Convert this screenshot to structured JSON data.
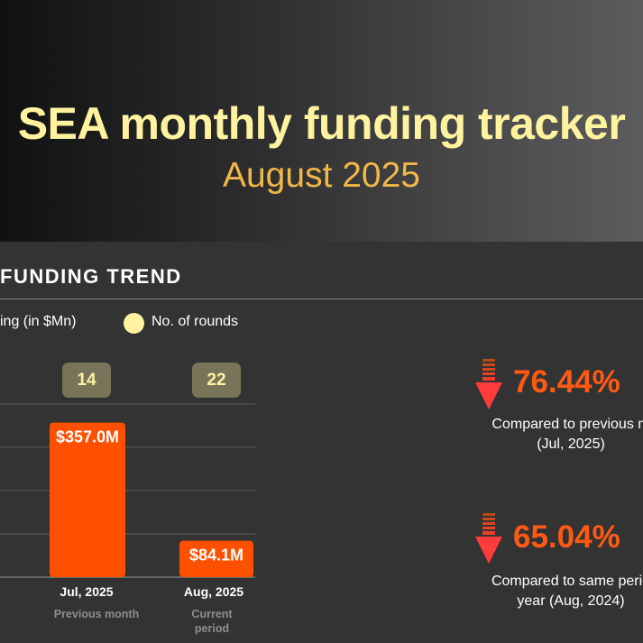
{
  "header": {
    "title": "SEA monthly funding tracker",
    "subtitle": "August 2025"
  },
  "section": {
    "title": "FUNDING TREND"
  },
  "legend": {
    "funding_label": "ing (in $Mn)",
    "rounds_label": "No. of rounds"
  },
  "chart_data": {
    "type": "bar",
    "categories": [
      "Jul, 2025",
      "Aug, 2025"
    ],
    "category_notes": [
      "Previous month",
      "Current period"
    ],
    "values": [
      357.0,
      84.1
    ],
    "value_labels": [
      "$357.0M",
      "$84.1M"
    ],
    "rounds": [
      14,
      22
    ],
    "ylim": [
      0,
      400
    ],
    "grid": true,
    "bar_color": "#ff5000",
    "legend_dot_color": "#fff3a0"
  },
  "stats": [
    {
      "direction": "down",
      "value": "76.44%",
      "caption_line1": "Compared to previous m",
      "caption_line2": "(Jul, 2025)"
    },
    {
      "direction": "down",
      "value": "65.04%",
      "caption_line1": "Compared to same perio",
      "caption_line2": "year (Aug, 2024)"
    }
  ],
  "colors": {
    "accent_orange": "#ff5a14",
    "title_yellow": "#fff3a0",
    "subtitle_gold": "#f0b74a",
    "arrow_red": "#ff3b3b"
  }
}
